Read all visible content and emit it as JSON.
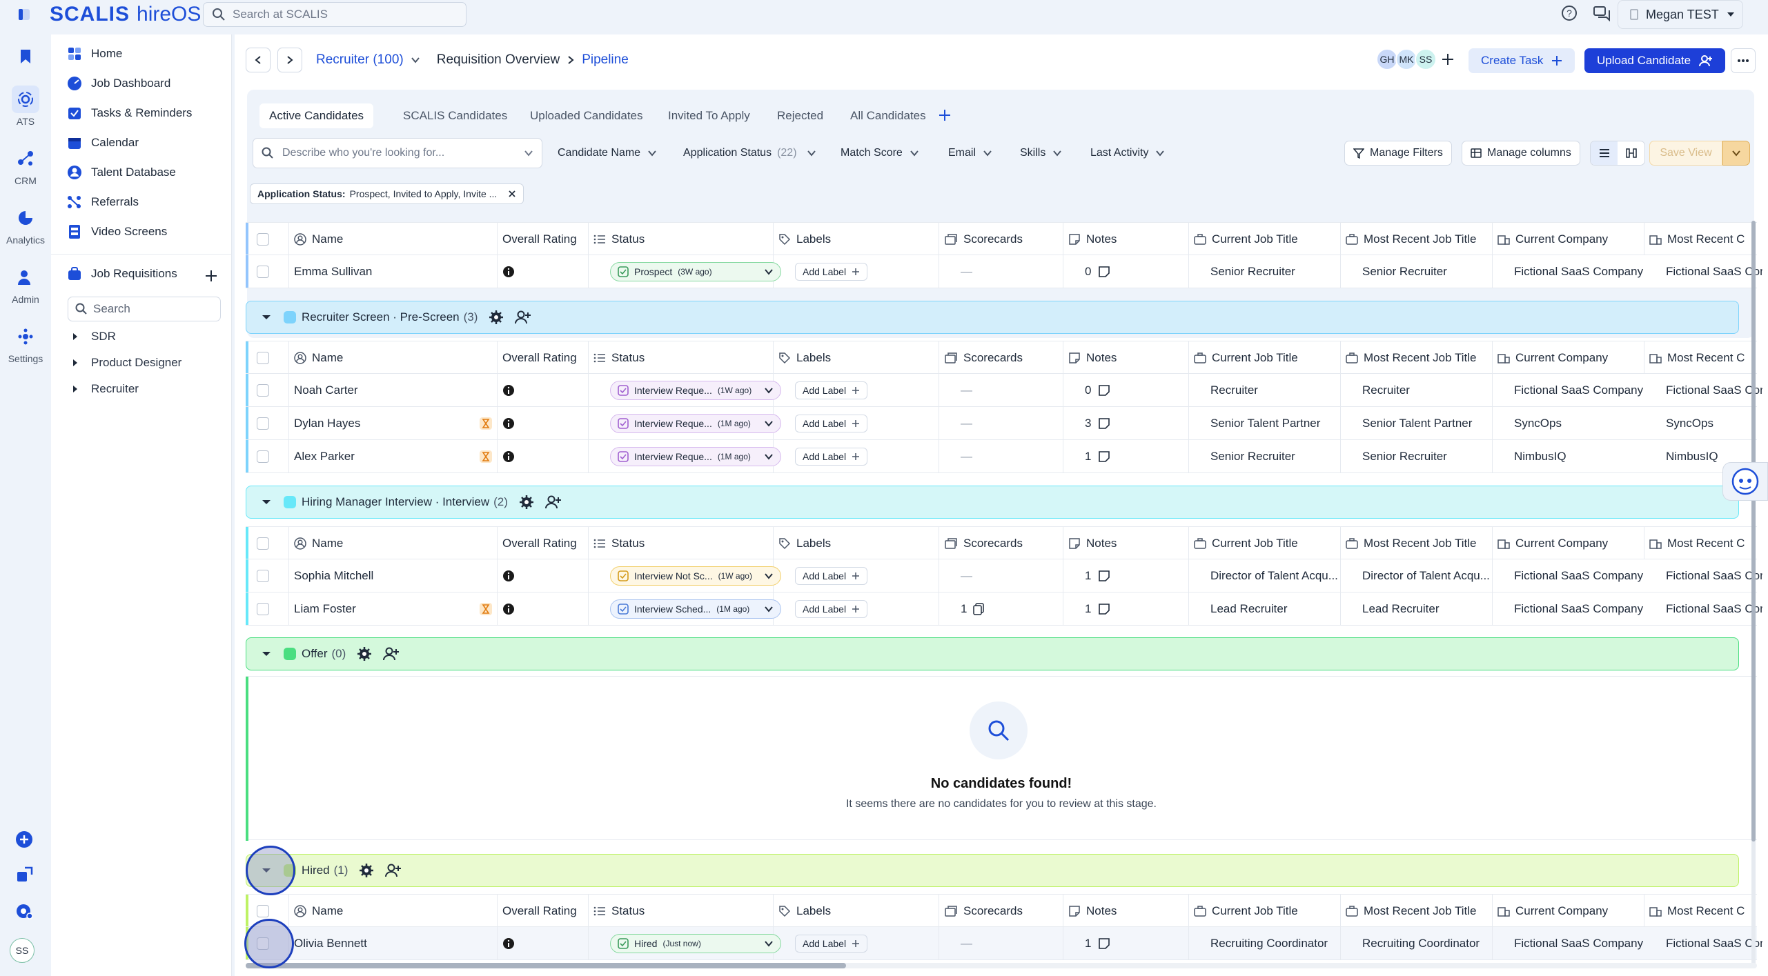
{
  "topbar": {
    "brand": "SCALIS",
    "product": "hireOS",
    "search_placeholder": "Search at SCALIS",
    "user_name": "Megan TEST"
  },
  "rail": {
    "items": [
      {
        "label": "ATS",
        "icon": "ats-icon"
      },
      {
        "label": "CRM",
        "icon": "crm-icon"
      },
      {
        "label": "Analytics",
        "icon": "analytics-icon"
      },
      {
        "label": "Admin",
        "icon": "admin-icon"
      },
      {
        "label": "Settings",
        "icon": "settings-icon"
      }
    ],
    "avatar": "SS"
  },
  "sidebar": {
    "items": [
      {
        "label": "Home"
      },
      {
        "label": "Job Dashboard"
      },
      {
        "label": "Tasks & Reminders"
      },
      {
        "label": "Calendar"
      },
      {
        "label": "Talent Database"
      },
      {
        "label": "Referrals"
      },
      {
        "label": "Video Screens"
      }
    ],
    "section": "Job Requisitions",
    "search_placeholder": "Search",
    "requisitions": [
      "SDR",
      "Product Designer",
      "Recruiter"
    ]
  },
  "header": {
    "req_title": "Recruiter (100)",
    "crumb_1": "Requisition Overview",
    "crumb_2": "Pipeline",
    "avatars": [
      "GH",
      "MK",
      "SS"
    ],
    "create_task": "Create Task",
    "upload_candidate": "Upload Candidate"
  },
  "tabs": [
    "Active Candidates",
    "SCALIS Candidates",
    "Uploaded Candidates",
    "Invited To Apply",
    "Rejected",
    "All Candidates"
  ],
  "filters": {
    "describe_placeholder": "Describe who you're looking for...",
    "candidate_name": "Candidate Name",
    "application_status": "Application Status",
    "application_status_count": "(22)",
    "match_score": "Match Score",
    "email": "Email",
    "skills": "Skills",
    "last_activity": "Last Activity",
    "manage_filters": "Manage Filters",
    "manage_columns": "Manage columns",
    "save_view": "Save View",
    "chip_label": "Application Status:",
    "chip_value": "Prospect, Invited to Apply, Invite ..."
  },
  "columns": [
    "Name",
    "Overall Rating",
    "Status",
    "Labels",
    "Scorecards",
    "Notes",
    "Current Job Title",
    "Most Recent Job Title",
    "Current Company",
    "Most Recent C"
  ],
  "add_label": "Add Label",
  "dash": "—",
  "stages": {
    "prospect_row": {
      "name": "Emma Sullivan",
      "status": "Prospect",
      "status_time": "(3W ago)",
      "notes": "0",
      "current_title": "Senior Recruiter",
      "recent_title": "Senior Recruiter",
      "company": "Fictional SaaS Company",
      "recent_company": "Fictional SaaS Com"
    },
    "screen": {
      "title": "Recruiter Screen · Pre-Screen",
      "count": "(3)",
      "rows": [
        {
          "name": "Noah Carter",
          "status": "Interview Reque...",
          "status_time": "(1W ago)",
          "notes": "0",
          "current_title": "Recruiter",
          "recent_title": "Recruiter",
          "company": "Fictional SaaS Company",
          "recent_company": "Fictional SaaS Com"
        },
        {
          "name": "Dylan Hayes",
          "status": "Interview Reque...",
          "status_time": "(1M ago)",
          "notes": "3",
          "current_title": "Senior Talent Partner",
          "recent_title": "Senior Talent Partner",
          "company": "SyncOps",
          "recent_company": "SyncOps"
        },
        {
          "name": "Alex Parker",
          "status": "Interview Reque...",
          "status_time": "(1M ago)",
          "notes": "1",
          "current_title": "Senior Recruiter",
          "recent_title": "Senior Recruiter",
          "company": "NimbusIQ",
          "recent_company": "NimbusIQ"
        }
      ]
    },
    "interview": {
      "title": "Hiring Manager Interview · Interview",
      "count": "(2)",
      "rows": [
        {
          "name": "Sophia Mitchell",
          "status": "Interview Not Sc...",
          "status_time": "(1W ago)",
          "scorecards": "—",
          "notes": "1",
          "current_title": "Director of Talent Acqu...",
          "recent_title": "Director of Talent Acqu...",
          "company": "Fictional SaaS Company",
          "recent_company": "Fictional SaaS Com"
        },
        {
          "name": "Liam Foster",
          "status": "Interview Sched...",
          "status_time": "(1M ago)",
          "scorecards": "1",
          "notes": "1",
          "current_title": "Lead Recruiter",
          "recent_title": "Lead Recruiter",
          "company": "Fictional SaaS Company",
          "recent_company": "Fictional SaaS Com"
        }
      ]
    },
    "offer": {
      "title": "Offer",
      "count": "(0)",
      "empty_title": "No candidates found!",
      "empty_text": "It seems there are no candidates for you to review at this stage."
    },
    "hired": {
      "title": "Hired",
      "count": "(1)",
      "rows": [
        {
          "name": "Olivia Bennett",
          "status": "Hired",
          "status_time": "(Just now)",
          "notes": "1",
          "current_title": "Recruiting Coordinator",
          "recent_title": "Recruiting Coordinator",
          "company": "Fictional SaaS Company",
          "recent_company": "Fictional SaaS Com"
        }
      ]
    }
  },
  "colors": {
    "brand": "#1d4ed8",
    "screen_stage": "#d3eefb",
    "interview_stage": "#d5f7f8",
    "offer_stage": "#d4f9dc",
    "hired_stage": "#eafad0"
  }
}
